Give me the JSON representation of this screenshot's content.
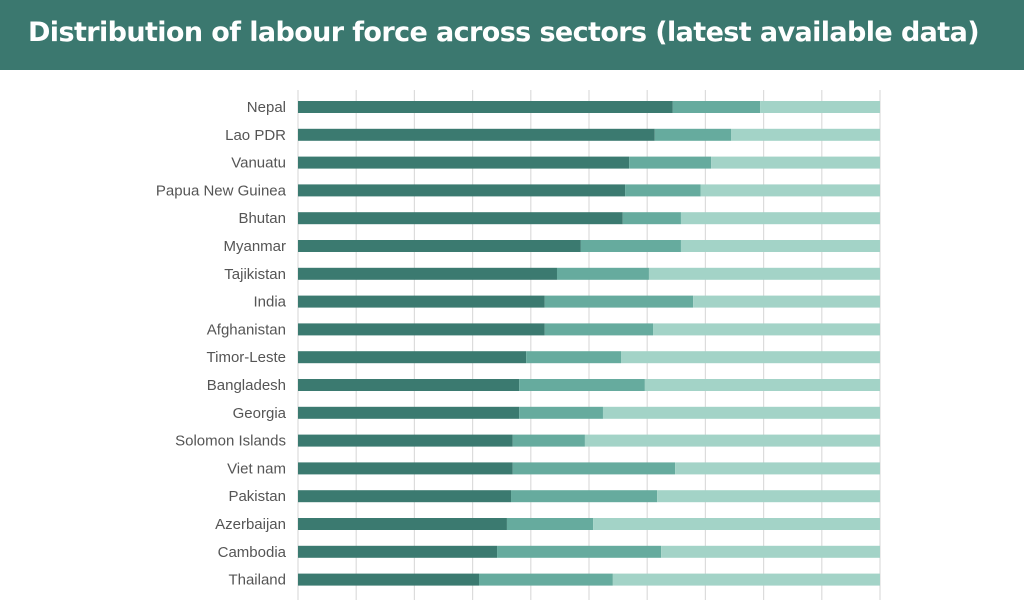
{
  "chart_data": {
    "type": "bar",
    "orientation": "horizontal",
    "stacked": true,
    "title": "Distribution of labour force across sectors (latest available data)",
    "xlabel": "",
    "ylabel": "",
    "xlim": [
      0,
      100
    ],
    "grid": true,
    "legend": "none",
    "colors": [
      "#3b7a70",
      "#66ab9e",
      "#a3d3c7"
    ],
    "categories": [
      "Nepal",
      "Lao PDR",
      "Vanuatu",
      "Papua New Guinea",
      "Bhutan",
      "Myanmar",
      "Tajikistan",
      "India",
      "Afghanistan",
      "Timor-Leste",
      "Bangladesh",
      "Georgia",
      "Solomon Islands",
      "Viet nam",
      "Pakistan",
      "Azerbaijan",
      "Cambodia",
      "Thailand"
    ],
    "series": [
      {
        "values": [
          64.4,
          61.3,
          56.9,
          56.2,
          55.8,
          48.6,
          44.5,
          42.4,
          42.4,
          39.2,
          38.0,
          38.0,
          36.9,
          36.9,
          36.6,
          35.9,
          34.2,
          31.1
        ]
      },
      {
        "values": [
          15.0,
          13.1,
          14.1,
          13.0,
          10.0,
          17.2,
          15.8,
          25.5,
          18.6,
          16.3,
          21.6,
          14.4,
          12.4,
          27.9,
          25.1,
          14.8,
          28.2,
          23.0
        ]
      },
      {
        "values": [
          20.6,
          25.6,
          29.0,
          30.8,
          34.2,
          34.2,
          39.7,
          32.1,
          39.0,
          44.5,
          40.4,
          47.6,
          50.7,
          35.2,
          38.3,
          49.3,
          37.6,
          45.9
        ]
      }
    ]
  },
  "header": {
    "title": "Distribution of labour force across sectors (latest available data)",
    "background": "#3b786f"
  }
}
